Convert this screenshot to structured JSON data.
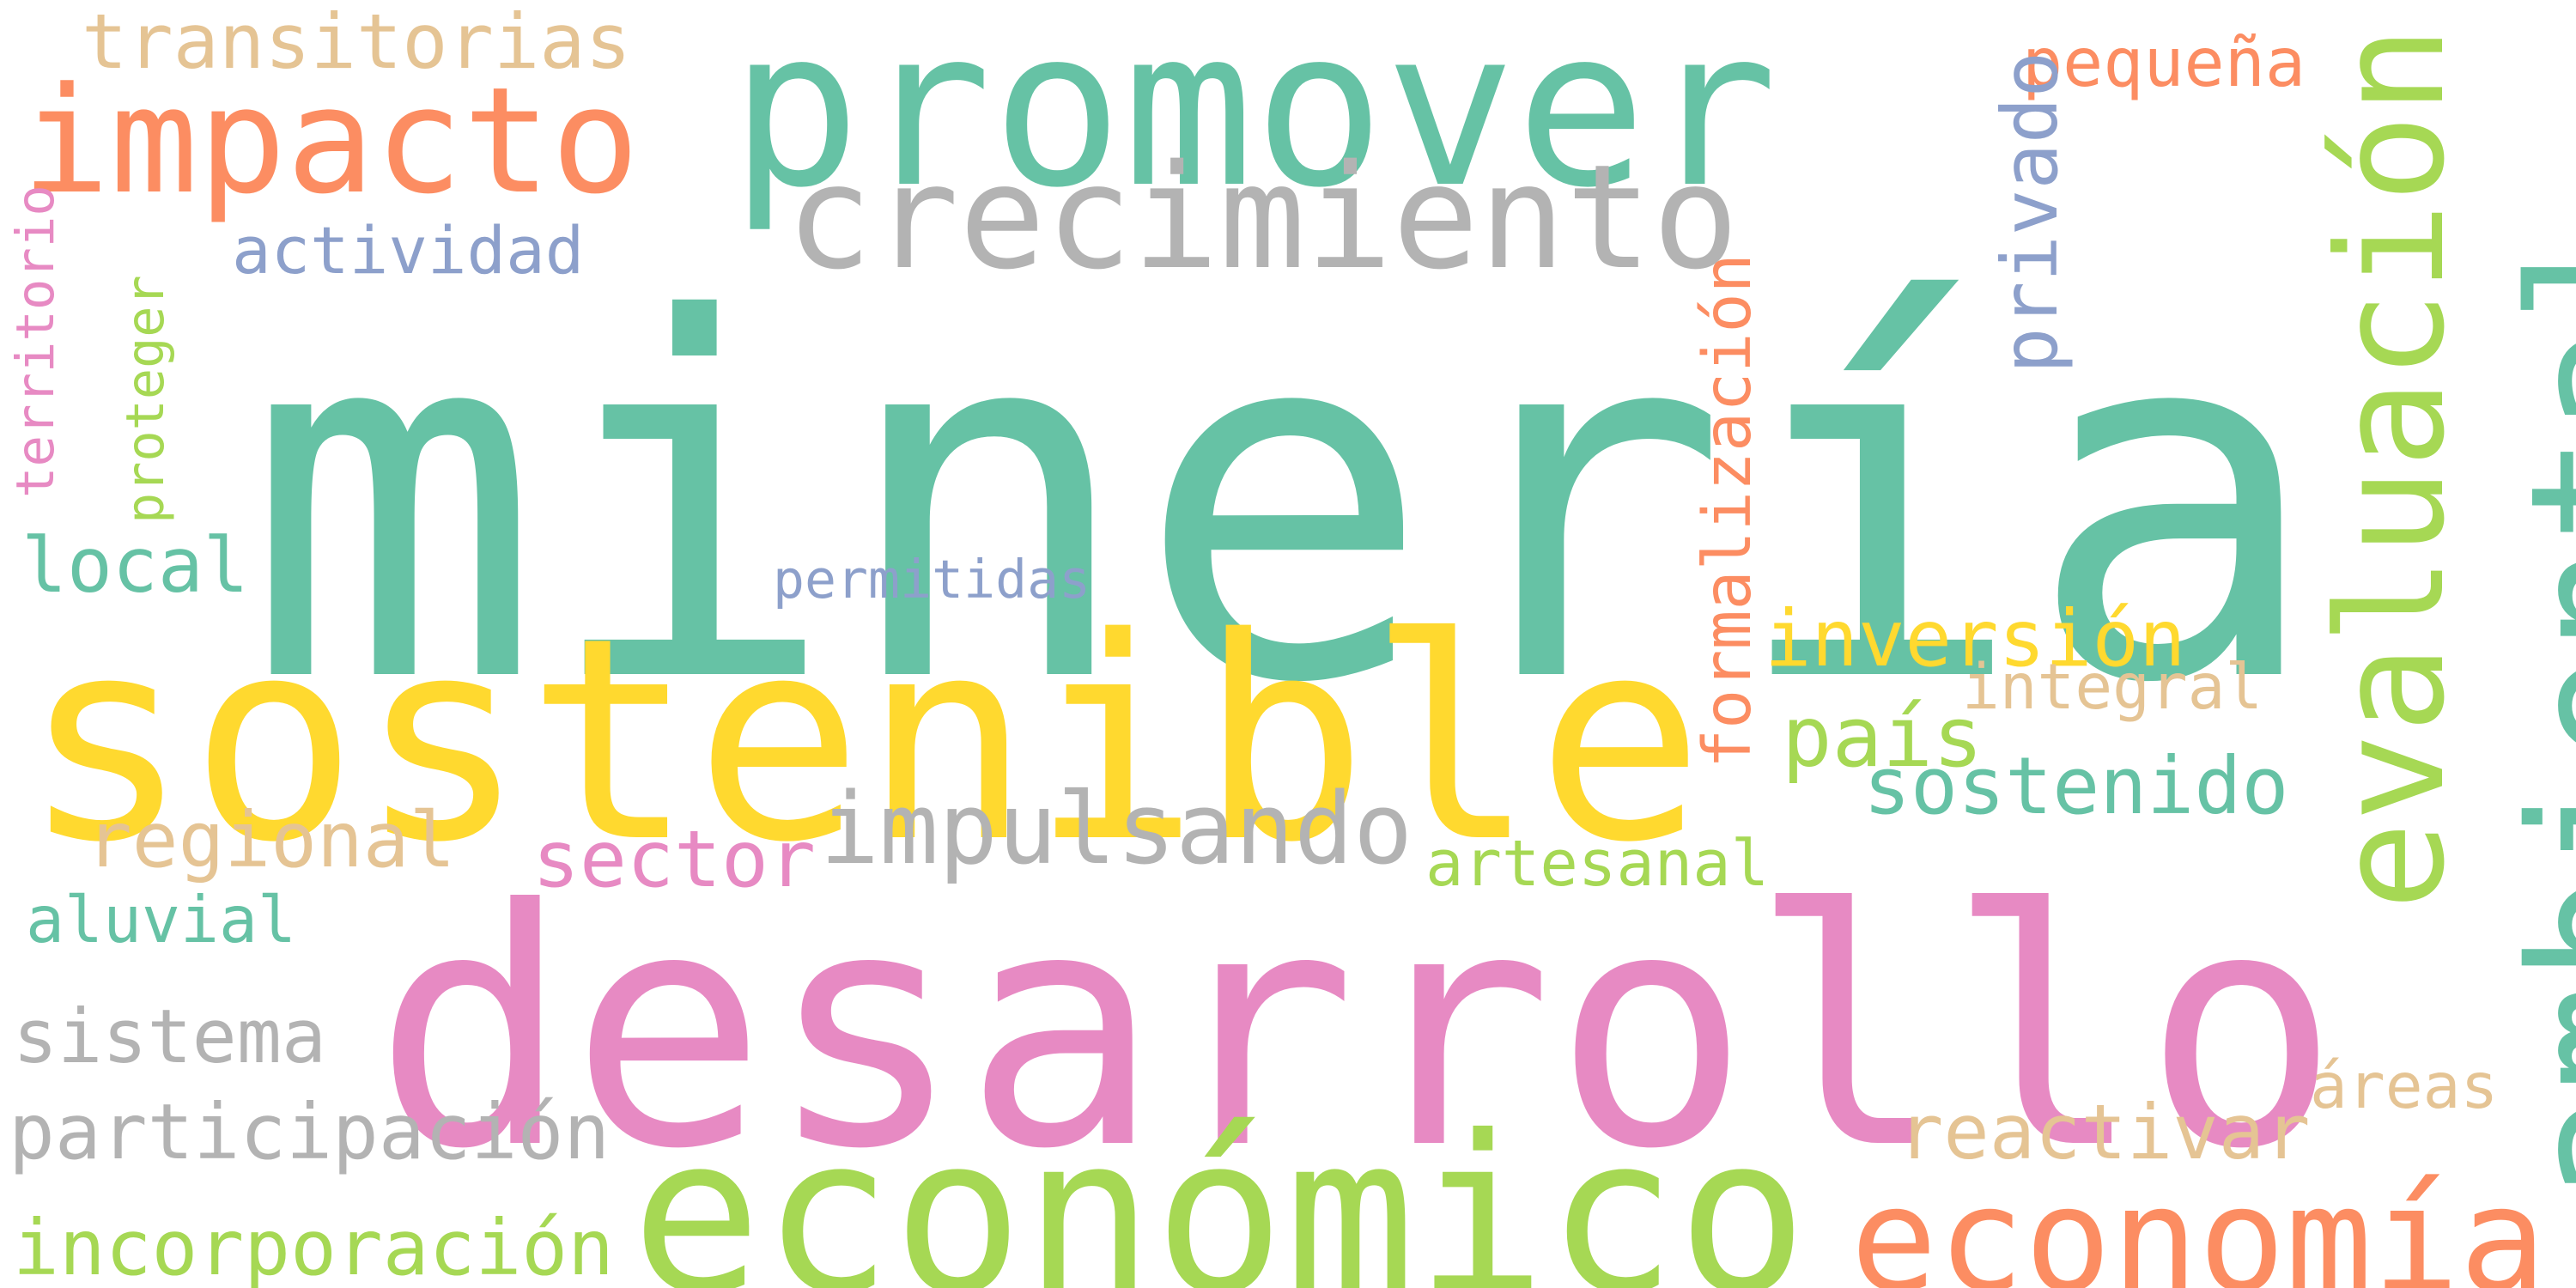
{
  "words": [
    {
      "id": "mineria",
      "text": "minería",
      "color": "#66c2a5"
    },
    {
      "id": "sostenible",
      "text": "sostenible",
      "color": "#ffd92f"
    },
    {
      "id": "desarrollo",
      "text": "desarrollo",
      "color": "#e78ac3"
    },
    {
      "id": "economico",
      "text": "económico",
      "color": "#a6d854"
    },
    {
      "id": "promover",
      "text": "promover",
      "color": "#66c2a5"
    },
    {
      "id": "impacto",
      "text": "impacto",
      "color": "#fc8d62"
    },
    {
      "id": "crecimiento",
      "text": "crecimiento",
      "color": "#b3b3b3"
    },
    {
      "id": "ambiental",
      "text": "ambiental",
      "color": "#66c2a5"
    },
    {
      "id": "evaluacion",
      "text": "evaluación",
      "color": "#a6d854"
    },
    {
      "id": "economia",
      "text": "economía",
      "color": "#fc8d62"
    },
    {
      "id": "impulsando",
      "text": "impulsando",
      "color": "#b3b3b3"
    },
    {
      "id": "transitorias",
      "text": "transitorias",
      "color": "#e5c494"
    },
    {
      "id": "actividad",
      "text": "actividad",
      "color": "#8da0cb"
    },
    {
      "id": "local",
      "text": "local",
      "color": "#66c2a5"
    },
    {
      "id": "regional",
      "text": "regional",
      "color": "#e5c494"
    },
    {
      "id": "sector",
      "text": "sector",
      "color": "#e78ac3"
    },
    {
      "id": "aluvial",
      "text": "aluvial",
      "color": "#66c2a5"
    },
    {
      "id": "sistema",
      "text": "sistema",
      "color": "#b3b3b3"
    },
    {
      "id": "participacion",
      "text": "participación",
      "color": "#b3b3b3"
    },
    {
      "id": "incorporacion",
      "text": "incorporación",
      "color": "#a6d854"
    },
    {
      "id": "permitidas",
      "text": "permitidas",
      "color": "#8da0cb"
    },
    {
      "id": "inversion",
      "text": "inversión",
      "color": "#ffd92f"
    },
    {
      "id": "integral",
      "text": "integral",
      "color": "#e5c494"
    },
    {
      "id": "pais",
      "text": "país",
      "color": "#a6d854"
    },
    {
      "id": "sostenido",
      "text": "sostenido",
      "color": "#66c2a5"
    },
    {
      "id": "artesanal",
      "text": "artesanal",
      "color": "#a6d854"
    },
    {
      "id": "reactivar",
      "text": "reactivar",
      "color": "#e5c494"
    },
    {
      "id": "areas",
      "text": "áreas",
      "color": "#e5c494"
    },
    {
      "id": "pequena",
      "text": "pequeña",
      "color": "#fc8d62"
    },
    {
      "id": "privado",
      "text": "privado",
      "color": "#8da0cb"
    },
    {
      "id": "formalizacion",
      "text": "formalización",
      "color": "#fc8d62"
    },
    {
      "id": "territorio",
      "text": "territorio",
      "color": "#e78ac3"
    },
    {
      "id": "proteger",
      "text": "proteger",
      "color": "#a6d854"
    }
  ]
}
